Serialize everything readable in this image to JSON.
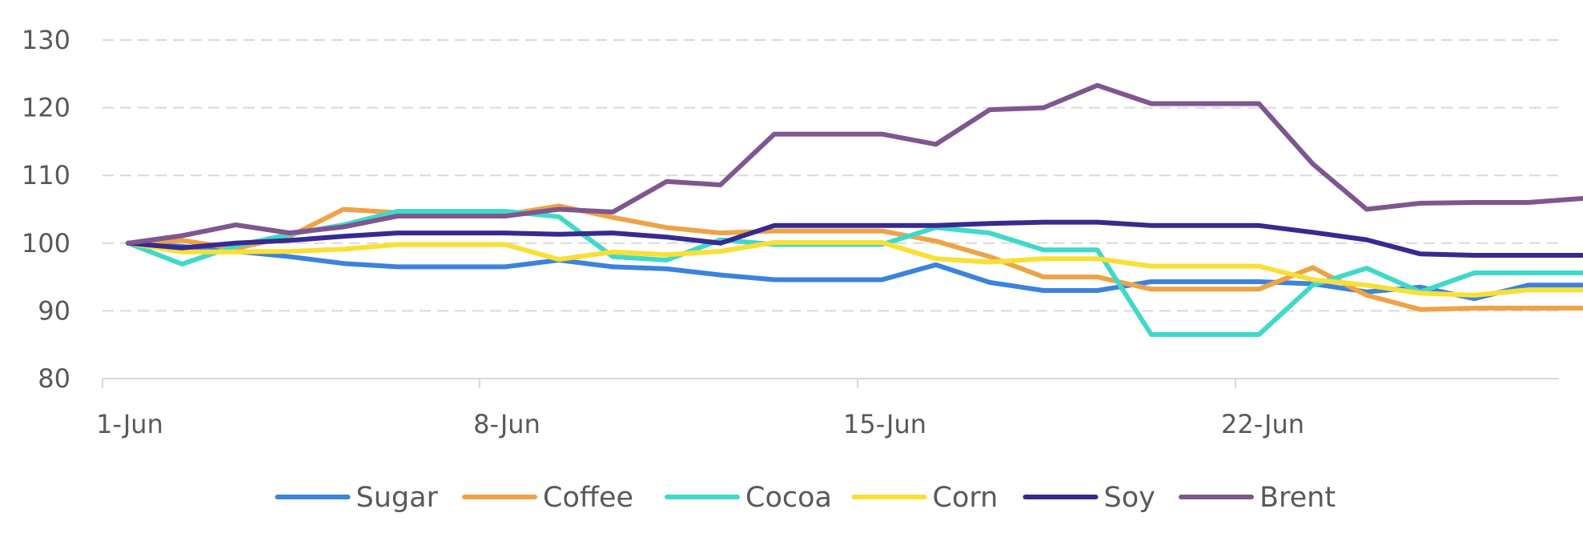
{
  "chart_data": {
    "type": "line",
    "title": "",
    "xlabel": "",
    "ylabel": "",
    "x": [
      "1-Jun",
      "2-Jun",
      "3-Jun",
      "4-Jun",
      "5-Jun",
      "6-Jun",
      "7-Jun",
      "8-Jun",
      "9-Jun",
      "10-Jun",
      "11-Jun",
      "12-Jun",
      "13-Jun",
      "14-Jun",
      "15-Jun",
      "16-Jun",
      "17-Jun",
      "18-Jun",
      "19-Jun",
      "20-Jun",
      "21-Jun",
      "22-Jun",
      "23-Jun",
      "24-Jun",
      "25-Jun",
      "26-Jun",
      "27-Jun",
      "28-Jun"
    ],
    "x_ticks": [
      "1-Jun",
      "8-Jun",
      "15-Jun",
      "22-Jun"
    ],
    "ylim": [
      80,
      130
    ],
    "y_ticks": [
      80,
      90,
      100,
      110,
      120,
      130
    ],
    "grid": true,
    "legend_position": "bottom",
    "series": [
      {
        "name": "Sugar",
        "color": "#3b83dc",
        "values": [
          100,
          99.5,
          98.8,
          98.0,
          97.0,
          96.5,
          96.5,
          96.5,
          97.5,
          96.5,
          96.2,
          95.3,
          94.6,
          94.6,
          94.6,
          96.8,
          94.2,
          93.0,
          93.0,
          94.3,
          94.3,
          94.3,
          94.0,
          92.8,
          93.5,
          91.8,
          93.8,
          93.8
        ]
      },
      {
        "name": "Coffee",
        "color": "#eea345",
        "values": [
          100,
          100.4,
          99.2,
          101.0,
          105.0,
          104.5,
          104.5,
          104.2,
          105.5,
          103.8,
          102.3,
          101.5,
          101.8,
          101.8,
          101.8,
          100.3,
          98.0,
          95.0,
          95.0,
          93.2,
          93.2,
          93.2,
          96.4,
          92.3,
          90.2,
          90.4,
          90.4,
          90.4
        ]
      },
      {
        "name": "Cocoa",
        "color": "#40d9c9",
        "values": [
          100,
          96.9,
          99.6,
          101.3,
          102.7,
          104.7,
          104.7,
          104.7,
          103.9,
          98.0,
          97.5,
          100.5,
          99.8,
          99.8,
          99.8,
          102.3,
          101.5,
          99.0,
          99.0,
          86.5,
          86.5,
          86.5,
          93.8,
          96.3,
          92.8,
          95.6,
          95.6,
          95.6
        ]
      },
      {
        "name": "Corn",
        "color": "#fadf35",
        "values": [
          100,
          98.7,
          98.7,
          98.8,
          99.1,
          99.8,
          99.8,
          99.8,
          97.6,
          98.7,
          98.3,
          98.8,
          100.1,
          100.1,
          100.1,
          97.7,
          97.2,
          97.7,
          97.7,
          96.6,
          96.6,
          96.6,
          94.6,
          93.8,
          92.6,
          92.3,
          93.1,
          93.1
        ]
      },
      {
        "name": "Soy",
        "color": "#372a90",
        "values": [
          100,
          99.3,
          100.0,
          100.4,
          101.0,
          101.5,
          101.5,
          101.5,
          101.3,
          101.5,
          100.9,
          100.0,
          102.6,
          102.6,
          102.6,
          102.6,
          102.9,
          103.1,
          103.1,
          102.6,
          102.6,
          102.6,
          101.6,
          100.5,
          98.4,
          98.2,
          98.2,
          98.2
        ]
      },
      {
        "name": "Brent",
        "color": "#7f5690",
        "values": [
          100,
          101.1,
          102.7,
          101.5,
          102.4,
          104.0,
          104.0,
          104.0,
          105.0,
          104.6,
          109.1,
          108.6,
          116.1,
          116.1,
          116.1,
          114.6,
          119.7,
          120.0,
          123.3,
          120.6,
          120.6,
          120.6,
          111.7,
          105.0,
          105.9,
          106.0,
          106.0,
          106.6
        ]
      }
    ]
  }
}
